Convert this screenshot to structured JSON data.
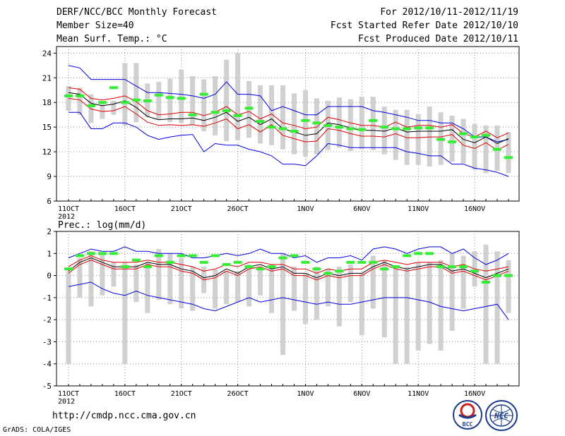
{
  "header": {
    "title": "DERF/NCC/BCC Monthly Forecast",
    "member_size": "Member Size=40",
    "variable": "Mean Surf. Temp.: °C",
    "period": "For 2012/10/11-2012/11/19",
    "started": "Fcst Started Refer Date 2012/10/10",
    "produced": "Fcst Produced Date 2012/10/11"
  },
  "footer": {
    "url": "http://cmdp.ncc.cma.gov.cn",
    "grads": "GrADS: COLA/IGES",
    "logo_bcc": "BCC",
    "logo_ncc": "NCC"
  },
  "colors": {
    "box": "#d0d0d0",
    "hindcast": "#33ee33",
    "mean": "#000000",
    "spread": "#dd0000",
    "extreme": "#0000dd",
    "grid": "#888888"
  },
  "chart_data": [
    {
      "type": "line",
      "title": "Mean Surf. Temp.: °C",
      "xlabel": "",
      "ylabel": "",
      "x_tick_labels": [
        "11OCT",
        "16OCT",
        "21OCT",
        "26OCT",
        "1NOV",
        "6NOV",
        "11NOV",
        "16NOV"
      ],
      "x_sub_label": "2012",
      "y_ticks": [
        6,
        9,
        12,
        15,
        18,
        21,
        24
      ],
      "ylim": [
        6,
        24.8
      ],
      "days": 40,
      "series": [
        {
          "name": "max",
          "values": [
            22.5,
            22.2,
            20.8,
            20.8,
            20.8,
            20.8,
            20.0,
            19.2,
            19.2,
            19.1,
            19.0,
            18.8,
            18.5,
            19.0,
            20.5,
            19.0,
            19.0,
            18.8,
            17.0,
            17.5,
            17.0,
            16.5,
            16.5,
            17.5,
            17.5,
            17.5,
            17.5,
            17.0,
            16.8,
            16.5,
            16.2,
            15.8,
            15.8,
            15.5,
            15.5,
            14.8,
            13.8,
            13.8,
            13.2,
            13.5
          ]
        },
        {
          "name": "upper",
          "values": [
            19.8,
            19.6,
            18.5,
            18.3,
            18.5,
            18.8,
            18.1,
            17.0,
            16.5,
            16.6,
            16.8,
            16.8,
            16.4,
            16.8,
            17.5,
            16.5,
            16.9,
            16.0,
            16.6,
            15.5,
            15.2,
            14.8,
            15.0,
            16.2,
            15.9,
            15.5,
            15.2,
            15.2,
            15.0,
            15.6,
            15.0,
            15.2,
            15.2,
            15.0,
            15.3,
            14.2,
            13.8,
            14.5,
            13.7,
            14.3
          ]
        },
        {
          "name": "mean",
          "values": [
            19.2,
            19.0,
            17.9,
            17.6,
            17.8,
            18.2,
            17.4,
            16.3,
            15.9,
            16.0,
            16.0,
            16.1,
            15.8,
            16.2,
            16.8,
            15.7,
            16.2,
            15.3,
            16.0,
            14.8,
            14.4,
            14.0,
            14.2,
            15.5,
            15.3,
            14.9,
            14.6,
            14.6,
            14.5,
            14.9,
            14.4,
            14.5,
            14.5,
            14.5,
            14.7,
            13.5,
            13.1,
            13.8,
            13.0,
            13.6
          ]
        },
        {
          "name": "lower",
          "values": [
            18.5,
            18.3,
            17.2,
            16.9,
            17.0,
            17.5,
            16.6,
            15.6,
            15.2,
            15.3,
            15.2,
            15.3,
            15.1,
            15.5,
            16.0,
            14.8,
            15.3,
            14.4,
            15.3,
            14.0,
            13.6,
            13.2,
            13.3,
            14.8,
            14.6,
            14.2,
            13.9,
            13.9,
            13.8,
            14.2,
            13.7,
            13.7,
            13.8,
            13.8,
            14.1,
            12.8,
            12.4,
            13.1,
            12.2,
            12.9
          ]
        },
        {
          "name": "min",
          "values": [
            16.8,
            16.8,
            14.8,
            14.8,
            15.5,
            15.5,
            15.0,
            14.0,
            13.5,
            13.8,
            14.0,
            14.1,
            12.0,
            13.0,
            12.8,
            12.8,
            12.3,
            12.0,
            11.5,
            10.5,
            10.5,
            10.3,
            11.5,
            13.0,
            12.8,
            12.5,
            12.5,
            12.5,
            12.5,
            12.5,
            12.0,
            11.8,
            11.5,
            11.5,
            10.5,
            10.5,
            10.0,
            9.8,
            9.5,
            9.0
          ]
        },
        {
          "name": "hindcast",
          "values": [
            18.8,
            18.8,
            17.6,
            18.0,
            19.8,
            18.0,
            18.3,
            18.2,
            18.9,
            18.6,
            18.5,
            16.5,
            19.0,
            16.8,
            17.0,
            16.4,
            17.3,
            15.7,
            15.0,
            14.8,
            14.5,
            15.8,
            15.5,
            15.2,
            15.0,
            14.8,
            14.7,
            15.8,
            15.0,
            14.8,
            14.8,
            14.9,
            14.9,
            13.5,
            13.2,
            14.2,
            13.8,
            14.0,
            12.3,
            11.3
          ]
        },
        {
          "name": "box_top",
          "values": [
            20.0,
            19.8,
            19.0,
            17.8,
            18.2,
            22.8,
            22.8,
            20.3,
            20.5,
            20.9,
            22.0,
            21.2,
            20.8,
            21.2,
            23.2,
            24.0,
            20.6,
            20.1,
            20.1,
            20.1,
            19.1,
            19.5,
            18.5,
            18.2,
            18.6,
            18.4,
            18.7,
            18.7,
            17.5,
            17.1,
            17.1,
            16.6,
            17.5,
            16.8,
            16.4,
            16.0,
            15.4,
            15.2,
            15.2,
            14.4
          ]
        },
        {
          "name": "box_bottom",
          "values": [
            17.0,
            16.5,
            15.5,
            16.0,
            16.5,
            15.2,
            15.6,
            16.2,
            15.9,
            15.6,
            15.5,
            15.3,
            14.5,
            14.0,
            13.3,
            13.4,
            13.7,
            13.0,
            12.8,
            12.3,
            11.7,
            11.4,
            11.7,
            12.2,
            12.5,
            12.1,
            12.3,
            12.2,
            11.7,
            11.0,
            10.4,
            10.4,
            10.2,
            10.4,
            10.8,
            10.6,
            9.8,
            9.4,
            9.7,
            9.4
          ]
        }
      ]
    },
    {
      "type": "line",
      "title": "Prec.: log(mm/d)",
      "xlabel": "",
      "ylabel": "",
      "x_tick_labels": [
        "11OCT",
        "16OCT",
        "21OCT",
        "26OCT",
        "1NOV",
        "6NOV",
        "11NOV",
        "16NOV"
      ],
      "x_sub_label": "2012",
      "y_ticks": [
        -5,
        -4,
        -3,
        -2,
        -1,
        0,
        1,
        2
      ],
      "ylim": [
        -5,
        2
      ],
      "days": 40,
      "series": [
        {
          "name": "max",
          "values": [
            0.8,
            1.0,
            1.2,
            1.1,
            1.1,
            1.3,
            1.1,
            1.1,
            1.0,
            1.0,
            1.0,
            0.8,
            0.8,
            0.9,
            1.0,
            0.9,
            1.0,
            1.2,
            1.0,
            1.0,
            0.8,
            0.9,
            0.6,
            0.8,
            0.8,
            0.9,
            0.7,
            1.2,
            1.3,
            1.2,
            1.0,
            1.2,
            1.3,
            1.3,
            1.0,
            1.2,
            0.8,
            0.5,
            0.7,
            1.0
          ]
        },
        {
          "name": "upper",
          "values": [
            0.4,
            0.7,
            0.9,
            0.7,
            0.6,
            0.6,
            0.6,
            0.7,
            0.6,
            0.6,
            0.5,
            0.4,
            0.2,
            0.3,
            0.5,
            0.4,
            0.6,
            0.6,
            0.5,
            0.5,
            0.3,
            0.3,
            0.1,
            0.3,
            0.2,
            0.3,
            0.3,
            0.6,
            0.7,
            0.6,
            0.5,
            0.6,
            0.6,
            0.6,
            0.4,
            0.5,
            0.3,
            0.2,
            0.3,
            0.4
          ]
        },
        {
          "name": "mean",
          "values": [
            0.2,
            0.6,
            0.8,
            0.6,
            0.4,
            0.4,
            0.4,
            0.6,
            0.5,
            0.5,
            0.3,
            0.2,
            -0.1,
            0.0,
            0.3,
            0.1,
            0.4,
            0.5,
            0.3,
            0.4,
            0.1,
            0.1,
            -0.1,
            0.1,
            0.0,
            0.1,
            0.1,
            0.4,
            0.6,
            0.4,
            0.3,
            0.4,
            0.5,
            0.5,
            0.2,
            0.3,
            0.1,
            -0.1,
            0.1,
            0.3
          ]
        },
        {
          "name": "lower",
          "values": [
            0.1,
            0.5,
            0.7,
            0.5,
            0.3,
            0.3,
            0.3,
            0.5,
            0.4,
            0.4,
            0.2,
            0.1,
            -0.2,
            -0.1,
            0.2,
            0.0,
            0.3,
            0.4,
            0.2,
            0.3,
            0.0,
            0.0,
            -0.2,
            0.0,
            -0.1,
            0.0,
            0.0,
            0.3,
            0.5,
            0.3,
            0.2,
            0.3,
            0.4,
            0.4,
            0.1,
            0.2,
            0.0,
            -0.2,
            0.0,
            0.2
          ]
        },
        {
          "name": "min",
          "values": [
            -0.5,
            -0.4,
            -0.3,
            -0.6,
            -0.8,
            -0.9,
            -0.7,
            -0.9,
            -1.0,
            -1.1,
            -1.2,
            -1.3,
            -1.5,
            -1.6,
            -1.4,
            -1.2,
            -1.0,
            -1.2,
            -1.1,
            -1.0,
            -1.1,
            -1.2,
            -1.3,
            -1.2,
            -1.3,
            -1.3,
            -1.2,
            -1.1,
            -1.0,
            -1.0,
            -1.0,
            -1.1,
            -1.2,
            -1.4,
            -1.5,
            -1.6,
            -1.5,
            -1.4,
            -1.3,
            -2.0
          ]
        },
        {
          "name": "hindcast",
          "values": [
            0.3,
            0.9,
            1.0,
            1.0,
            1.0,
            0.4,
            0.7,
            0.4,
            0.9,
            0.6,
            0.9,
            0.9,
            0.6,
            0.9,
            0.5,
            0.6,
            0.4,
            0.3,
            0.4,
            0.8,
            0.9,
            0.6,
            0.3,
            0.1,
            0.2,
            0.6,
            0.6,
            0.6,
            0.3,
            0.4,
            0.9,
            1.0,
            1.0,
            0.4,
            0.4,
            0.4,
            0.2,
            -0.3,
            0.0,
            0.0
          ]
        },
        {
          "name": "box_top",
          "values": [
            0.2,
            0.8,
            1.1,
            1.0,
            0.6,
            0.6,
            0.5,
            0.6,
            1.2,
            1.0,
            0.8,
            0.4,
            0.4,
            0.3,
            0.2,
            0.2,
            0.5,
            0.4,
            0.5,
            1.0,
            0.4,
            0.1,
            0.4,
            0.3,
            0.4,
            0.5,
            0.1,
            0.9,
            0.7,
            0.4,
            0.4,
            0.6,
            0.6,
            0.7,
            1.0,
            0.9,
            1.1,
            1.4,
            1.1,
            0.7
          ]
        },
        {
          "name": "box_bottom",
          "values": [
            -4.0,
            -1.0,
            -1.4,
            -0.9,
            -0.5,
            -4.0,
            -1.2,
            -1.7,
            -1.1,
            -1.3,
            -1.5,
            -1.6,
            -0.8,
            -1.5,
            -1.3,
            -1.2,
            -1.4,
            -0.9,
            -1.7,
            -3.6,
            -1.6,
            -2.2,
            -2.0,
            -1.4,
            -2.3,
            -1.2,
            -2.7,
            -1.5,
            -2.8,
            -4.0,
            -4.0,
            -3.4,
            -3.1,
            -3.4,
            -2.5,
            -1.5,
            -0.5,
            -4.0,
            -4.0,
            -1.7
          ]
        }
      ]
    }
  ]
}
